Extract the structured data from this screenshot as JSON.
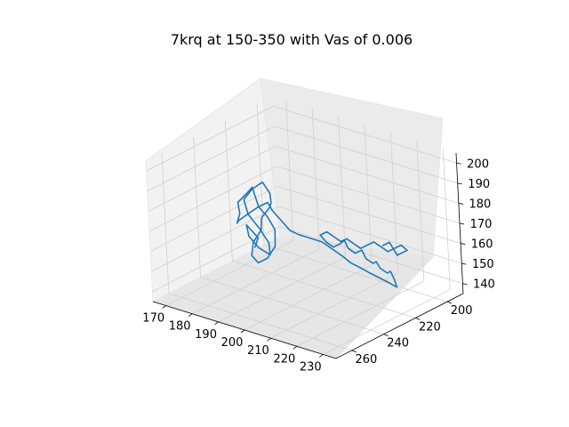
{
  "chart_data": {
    "type": "line",
    "title": "7krq at 150-350 with Vas of 0.006",
    "projection": "3d",
    "grid": true,
    "xlabel": "",
    "ylabel": "",
    "zlabel": "",
    "xlim": [
      165,
      235
    ],
    "ylim": [
      190,
      270
    ],
    "zlim": [
      135,
      205
    ],
    "x_ticks": [
      170,
      180,
      190,
      200,
      210,
      220,
      230
    ],
    "y_ticks": [
      200,
      220,
      240,
      260
    ],
    "z_ticks": [
      140,
      150,
      160,
      170,
      180,
      190,
      200
    ],
    "series": [
      {
        "color": "#1f77b4",
        "points": [
          [
            188,
            242,
            160
          ],
          [
            190,
            243,
            166
          ],
          [
            187,
            245,
            172
          ],
          [
            189,
            247,
            168
          ],
          [
            192,
            246,
            163
          ],
          [
            195,
            244,
            160
          ],
          [
            196,
            246,
            167
          ],
          [
            194,
            248,
            174
          ],
          [
            191,
            250,
            181
          ],
          [
            189,
            249,
            187
          ],
          [
            191,
            247,
            192
          ],
          [
            194,
            246,
            196
          ],
          [
            196,
            248,
            198
          ],
          [
            198,
            247,
            193
          ],
          [
            197,
            245,
            187
          ],
          [
            195,
            243,
            183
          ],
          [
            193,
            245,
            178
          ],
          [
            192,
            244,
            171
          ],
          [
            190,
            246,
            165
          ],
          [
            191,
            249,
            160
          ],
          [
            194,
            250,
            158
          ],
          [
            197,
            249,
            161
          ],
          [
            199,
            247,
            167
          ],
          [
            198,
            245,
            174
          ],
          [
            196,
            246,
            180
          ],
          [
            194,
            248,
            185
          ],
          [
            192,
            247,
            190
          ],
          [
            190,
            245,
            192
          ],
          [
            188,
            246,
            188
          ],
          [
            186,
            248,
            184
          ],
          [
            185,
            246,
            180
          ],
          [
            184,
            244,
            176
          ],
          [
            184,
            246,
            172
          ],
          [
            186,
            248,
            175
          ],
          [
            189,
            247,
            179
          ],
          [
            192,
            245,
            183
          ],
          [
            195,
            244,
            186
          ],
          [
            198,
            246,
            184
          ],
          [
            200,
            244,
            179
          ],
          [
            202,
            242,
            174
          ],
          [
            204,
            240,
            172
          ],
          [
            206,
            237,
            170
          ],
          [
            209,
            234,
            168
          ],
          [
            211,
            231,
            164
          ],
          [
            213,
            228,
            160
          ],
          [
            214,
            225,
            156
          ],
          [
            216,
            222,
            153
          ],
          [
            217,
            219,
            150
          ],
          [
            219,
            216,
            147
          ],
          [
            221,
            213,
            144
          ],
          [
            222,
            210,
            141
          ],
          [
            220,
            208,
            143
          ],
          [
            218,
            207,
            146
          ],
          [
            216,
            206,
            144
          ],
          [
            214,
            207,
            146
          ],
          [
            212,
            206,
            148
          ],
          [
            210,
            205,
            146
          ],
          [
            208,
            206,
            148
          ],
          [
            206,
            205,
            151
          ],
          [
            204,
            206,
            149
          ],
          [
            202,
            207,
            151
          ],
          [
            200,
            206,
            154
          ],
          [
            198,
            205,
            152
          ],
          [
            196,
            206,
            154
          ],
          [
            194,
            207,
            156
          ],
          [
            192,
            208,
            154
          ],
          [
            193,
            206,
            150
          ],
          [
            195,
            205,
            148
          ],
          [
            197,
            204,
            150
          ],
          [
            199,
            203,
            153
          ],
          [
            201,
            202,
            151
          ],
          [
            203,
            201,
            149
          ],
          [
            205,
            200,
            151
          ],
          [
            207,
            199,
            153
          ],
          [
            209,
            198,
            151
          ],
          [
            211,
            197,
            149
          ],
          [
            213,
            196,
            151
          ],
          [
            215,
            195,
            153
          ],
          [
            216,
            193,
            150
          ],
          [
            214,
            192,
            148
          ],
          [
            212,
            193,
            146
          ],
          [
            210,
            192,
            148
          ],
          [
            208,
            191,
            150
          ],
          [
            206,
            192,
            148
          ]
        ]
      }
    ]
  }
}
